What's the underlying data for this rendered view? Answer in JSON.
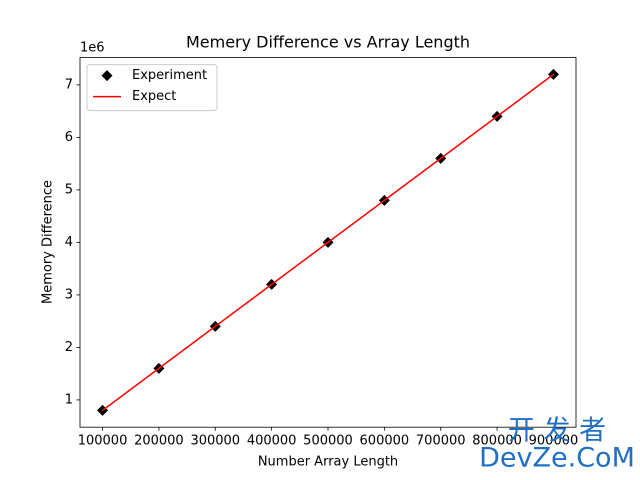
{
  "chart_data": {
    "type": "line",
    "title": "Memery Difference vs Array Length",
    "xlabel": "Number Array Length",
    "ylabel": "Memory Difference",
    "y_offset_label": "1e6",
    "x": [
      100000,
      200000,
      300000,
      400000,
      500000,
      600000,
      700000,
      800000,
      900000
    ],
    "series": [
      {
        "name": "Experiment",
        "color": "#000000",
        "marker": "diamond",
        "line": false,
        "values": [
          800000,
          1600000,
          2400000,
          3200000,
          4000000,
          4800000,
          5600000,
          6400000,
          7200000
        ]
      },
      {
        "name": "Expect",
        "color": "#ff0000",
        "marker": null,
        "line": true,
        "values": [
          800000,
          1600000,
          2400000,
          3200000,
          4000000,
          4800000,
          5600000,
          6400000,
          7200000
        ]
      }
    ],
    "xlim": [
      60000,
      940000
    ],
    "xticks": [
      100000,
      200000,
      300000,
      400000,
      500000,
      600000,
      700000,
      800000,
      900000
    ],
    "ylim": [
      480000,
      7520000
    ],
    "yticks": [
      {
        "value": 1000000,
        "label": "1"
      },
      {
        "value": 2000000,
        "label": "2"
      },
      {
        "value": 3000000,
        "label": "3"
      },
      {
        "value": 4000000,
        "label": "4"
      },
      {
        "value": 5000000,
        "label": "5"
      },
      {
        "value": 6000000,
        "label": "6"
      },
      {
        "value": 7000000,
        "label": "7"
      }
    ],
    "grid": false,
    "legend": "upper left",
    "watermark": [
      "开 发 者",
      "DevZe.CoM"
    ]
  }
}
